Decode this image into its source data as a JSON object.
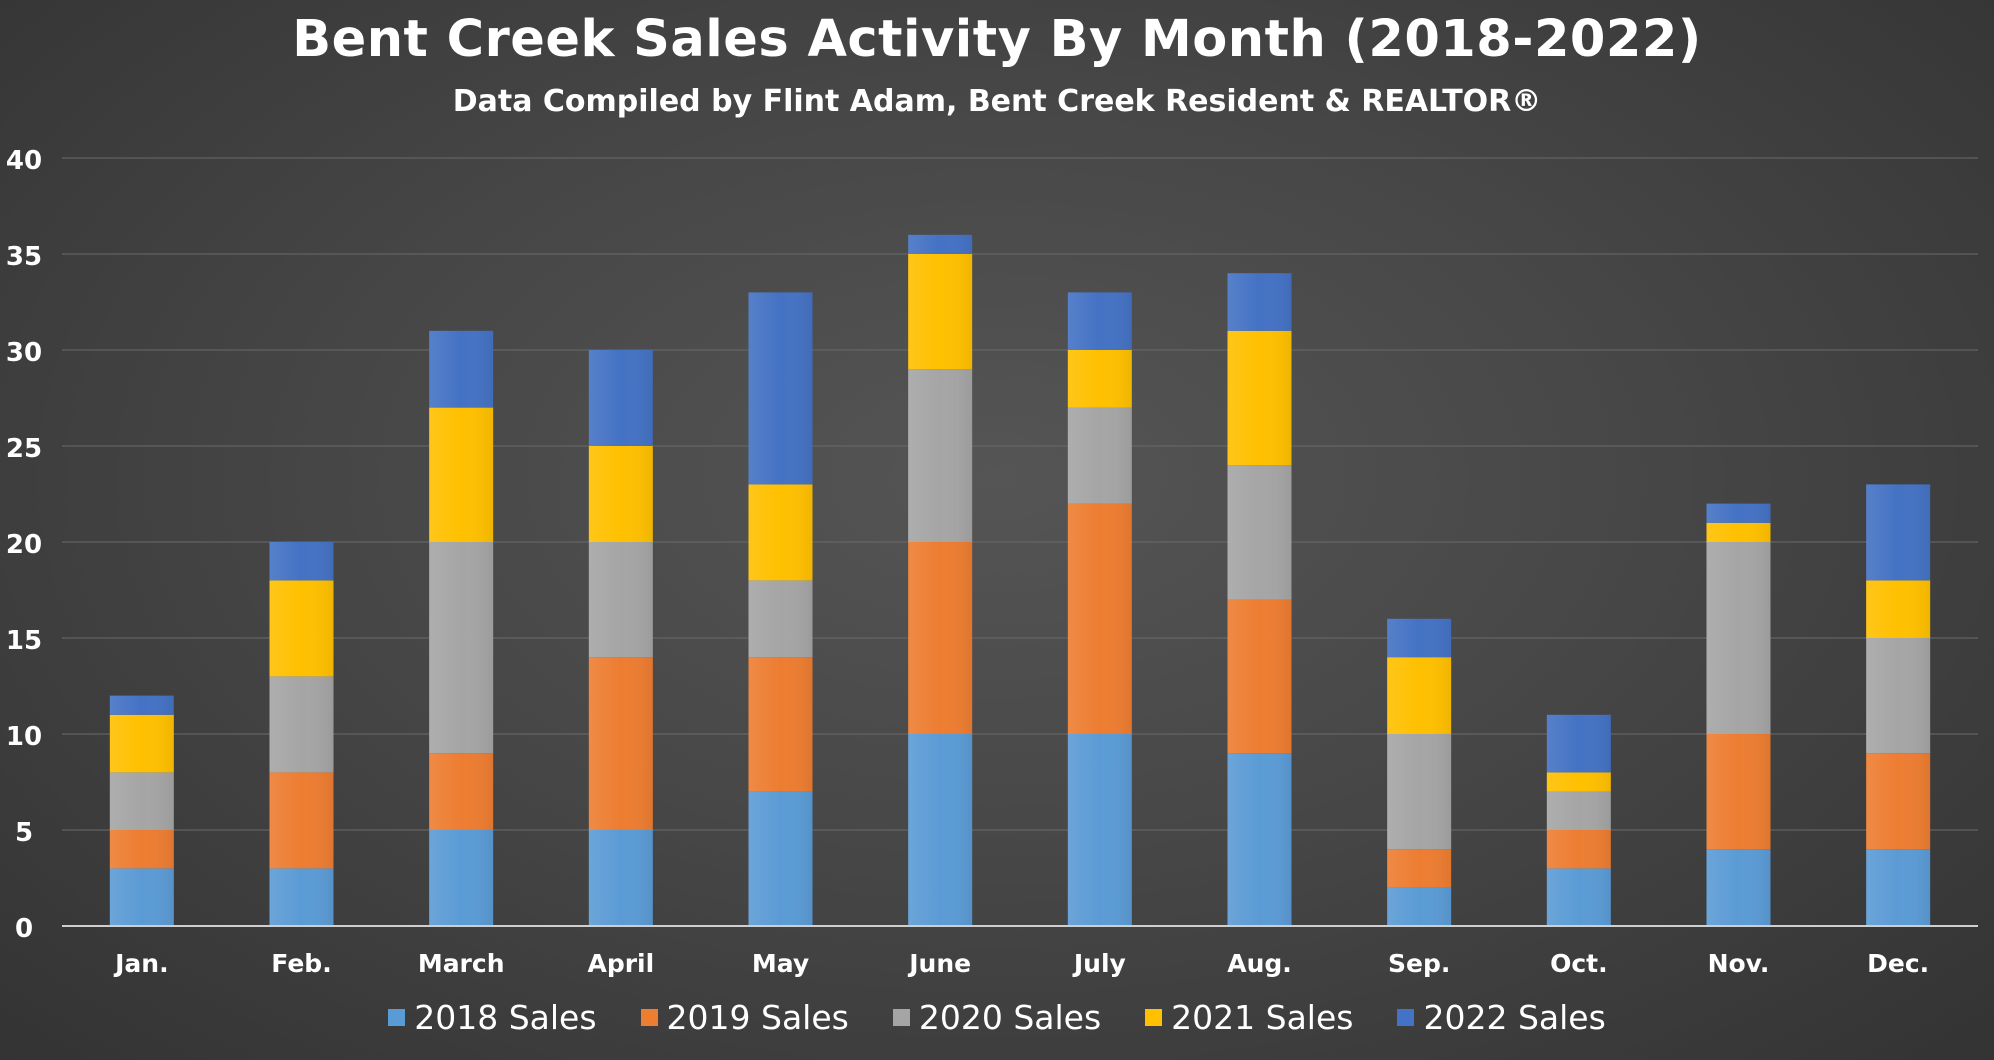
{
  "chart_data": {
    "type": "bar",
    "stacked": true,
    "title": "Bent Creek Sales Activity By Month (2018-2022)",
    "subtitle": "Data Compiled by Flint Adam, Bent Creek Resident & REALTOR®",
    "categories": [
      "Jan.",
      "Feb.",
      "March",
      "April",
      "May",
      "June",
      "July",
      "Aug.",
      "Sep.",
      "Oct.",
      "Nov.",
      "Dec."
    ],
    "series": [
      {
        "name": "2018 Sales",
        "color": "#5b9bd5",
        "values": [
          3,
          3,
          5,
          5,
          7,
          10,
          10,
          9,
          2,
          3,
          4,
          4
        ]
      },
      {
        "name": "2019 Sales",
        "color": "#ed7d31",
        "values": [
          2,
          5,
          4,
          9,
          7,
          10,
          12,
          8,
          2,
          2,
          6,
          5
        ]
      },
      {
        "name": "2020 Sales",
        "color": "#a5a5a5",
        "values": [
          3,
          5,
          11,
          6,
          4,
          9,
          5,
          7,
          6,
          2,
          10,
          6
        ]
      },
      {
        "name": "2021 Sales",
        "color": "#ffc000",
        "values": [
          3,
          5,
          7,
          5,
          5,
          6,
          3,
          7,
          4,
          1,
          1,
          3
        ]
      },
      {
        "name": "2022 Sales",
        "color": "#4472c4",
        "values": [
          1,
          2,
          4,
          5,
          10,
          1,
          3,
          3,
          2,
          3,
          1,
          5
        ]
      }
    ],
    "xlabel": "",
    "ylabel": "",
    "ylim": [
      0,
      40
    ],
    "yticks": [
      0,
      5,
      10,
      15,
      20,
      25,
      30,
      35,
      40
    ],
    "grid": true,
    "legend": "bottom"
  }
}
